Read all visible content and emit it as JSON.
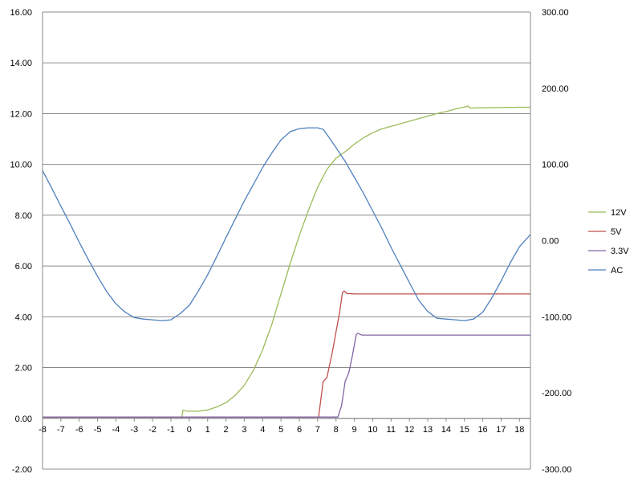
{
  "chart_data": {
    "type": "line",
    "grid": "horizontal",
    "legend_position": "right",
    "x_axis": {
      "range": [
        -8,
        18.6
      ],
      "ticks": [
        "-8",
        "-7",
        "-6",
        "-5",
        "-4",
        "-3",
        "-2",
        "-1",
        "0",
        "1",
        "2",
        "3",
        "4",
        "5",
        "6",
        "7",
        "8",
        "9",
        "10",
        "11",
        "12",
        "13",
        "14",
        "15",
        "16",
        "17",
        "18"
      ]
    },
    "y_left": {
      "range": [
        -2,
        16
      ],
      "ticks": [
        "16.00",
        "14.00",
        "12.00",
        "10.00",
        "8.00",
        "6.00",
        "4.00",
        "2.00",
        "0.00",
        "-2.00"
      ]
    },
    "y_right": {
      "range": [
        -300,
        300
      ],
      "ticks": [
        "300.00",
        "200.00",
        "100.00",
        "0.00",
        "-100.00",
        "-200.00",
        "-300.00"
      ]
    },
    "series": [
      {
        "name": "12V",
        "color": "#9BBB59",
        "axis": "left",
        "points": [
          [
            -8,
            0.05
          ],
          [
            -0.4,
            0.05
          ],
          [
            -0.35,
            0.32
          ],
          [
            -0.1,
            0.28
          ],
          [
            0.5,
            0.28
          ],
          [
            1,
            0.33
          ],
          [
            1.5,
            0.45
          ],
          [
            2,
            0.62
          ],
          [
            2.5,
            0.9
          ],
          [
            3,
            1.3
          ],
          [
            3.5,
            1.9
          ],
          [
            4,
            2.7
          ],
          [
            4.5,
            3.7
          ],
          [
            5,
            4.9
          ],
          [
            5.5,
            6.1
          ],
          [
            6,
            7.2
          ],
          [
            6.5,
            8.2
          ],
          [
            7,
            9.1
          ],
          [
            7.5,
            9.8
          ],
          [
            8,
            10.25
          ],
          [
            8.5,
            10.5
          ],
          [
            9,
            10.8
          ],
          [
            9.5,
            11.05
          ],
          [
            10,
            11.25
          ],
          [
            10.5,
            11.4
          ],
          [
            11,
            11.5
          ],
          [
            11.5,
            11.6
          ],
          [
            12,
            11.7
          ],
          [
            12.5,
            11.8
          ],
          [
            13,
            11.9
          ],
          [
            13.5,
            12.0
          ],
          [
            14,
            12.08
          ],
          [
            14.5,
            12.18
          ],
          [
            15,
            12.26
          ],
          [
            15.2,
            12.3
          ],
          [
            15.3,
            12.22
          ],
          [
            16,
            12.23
          ],
          [
            17,
            12.24
          ],
          [
            18,
            12.25
          ],
          [
            18.6,
            12.25
          ]
        ]
      },
      {
        "name": "5V",
        "color": "#C0504D",
        "axis": "left",
        "points": [
          [
            -8,
            0.05
          ],
          [
            7.05,
            0.05
          ],
          [
            7.3,
            1.45
          ],
          [
            7.5,
            1.6
          ],
          [
            7.8,
            2.6
          ],
          [
            8.0,
            3.4
          ],
          [
            8.2,
            4.2
          ],
          [
            8.35,
            4.95
          ],
          [
            8.45,
            5.02
          ],
          [
            8.6,
            4.92
          ],
          [
            9,
            4.9
          ],
          [
            10,
            4.9
          ],
          [
            12,
            4.9
          ],
          [
            14,
            4.9
          ],
          [
            16,
            4.9
          ],
          [
            18,
            4.9
          ],
          [
            18.6,
            4.9
          ]
        ]
      },
      {
        "name": "3.3V",
        "color": "#8064A2",
        "axis": "left",
        "points": [
          [
            -8,
            0.05
          ],
          [
            8.1,
            0.05
          ],
          [
            8.3,
            0.5
          ],
          [
            8.5,
            1.45
          ],
          [
            8.7,
            1.8
          ],
          [
            8.9,
            2.5
          ],
          [
            9.1,
            3.3
          ],
          [
            9.2,
            3.35
          ],
          [
            9.4,
            3.28
          ],
          [
            10,
            3.28
          ],
          [
            12,
            3.28
          ],
          [
            14,
            3.28
          ],
          [
            16,
            3.28
          ],
          [
            18,
            3.28
          ],
          [
            18.6,
            3.28
          ]
        ]
      },
      {
        "name": "AC",
        "color": "#4F81BD",
        "axis": "right",
        "points": [
          [
            -8,
            92
          ],
          [
            -7.5,
            69
          ],
          [
            -7,
            45
          ],
          [
            -6.5,
            22
          ],
          [
            -6,
            -2
          ],
          [
            -5.5,
            -25
          ],
          [
            -5,
            -47
          ],
          [
            -4.5,
            -67
          ],
          [
            -4,
            -83
          ],
          [
            -3.5,
            -94
          ],
          [
            -3,
            -101
          ],
          [
            -2.5,
            -103
          ],
          [
            -2,
            -104
          ],
          [
            -1.5,
            -105
          ],
          [
            -1,
            -104
          ],
          [
            -0.5,
            -96
          ],
          [
            0,
            -85
          ],
          [
            0.5,
            -66
          ],
          [
            1,
            -45
          ],
          [
            1.5,
            -21
          ],
          [
            2,
            4
          ],
          [
            2.5,
            28
          ],
          [
            3,
            52
          ],
          [
            3.5,
            74
          ],
          [
            4,
            96
          ],
          [
            4.5,
            115
          ],
          [
            5,
            132
          ],
          [
            5.5,
            143
          ],
          [
            6,
            147
          ],
          [
            6.5,
            148
          ],
          [
            7,
            148
          ],
          [
            7.3,
            146
          ],
          [
            7.6,
            136
          ],
          [
            8,
            122
          ],
          [
            8.5,
            104
          ],
          [
            9,
            83
          ],
          [
            9.5,
            62
          ],
          [
            10,
            39
          ],
          [
            10.5,
            16
          ],
          [
            11,
            -9
          ],
          [
            11.5,
            -32
          ],
          [
            12,
            -55
          ],
          [
            12.5,
            -78
          ],
          [
            13,
            -93
          ],
          [
            13.5,
            -102
          ],
          [
            14,
            -103
          ],
          [
            14.5,
            -104
          ],
          [
            15,
            -105
          ],
          [
            15.5,
            -103
          ],
          [
            16,
            -94
          ],
          [
            16.5,
            -75
          ],
          [
            17,
            -53
          ],
          [
            17.5,
            -29
          ],
          [
            18,
            -8
          ],
          [
            18.6,
            8
          ]
        ]
      }
    ]
  }
}
